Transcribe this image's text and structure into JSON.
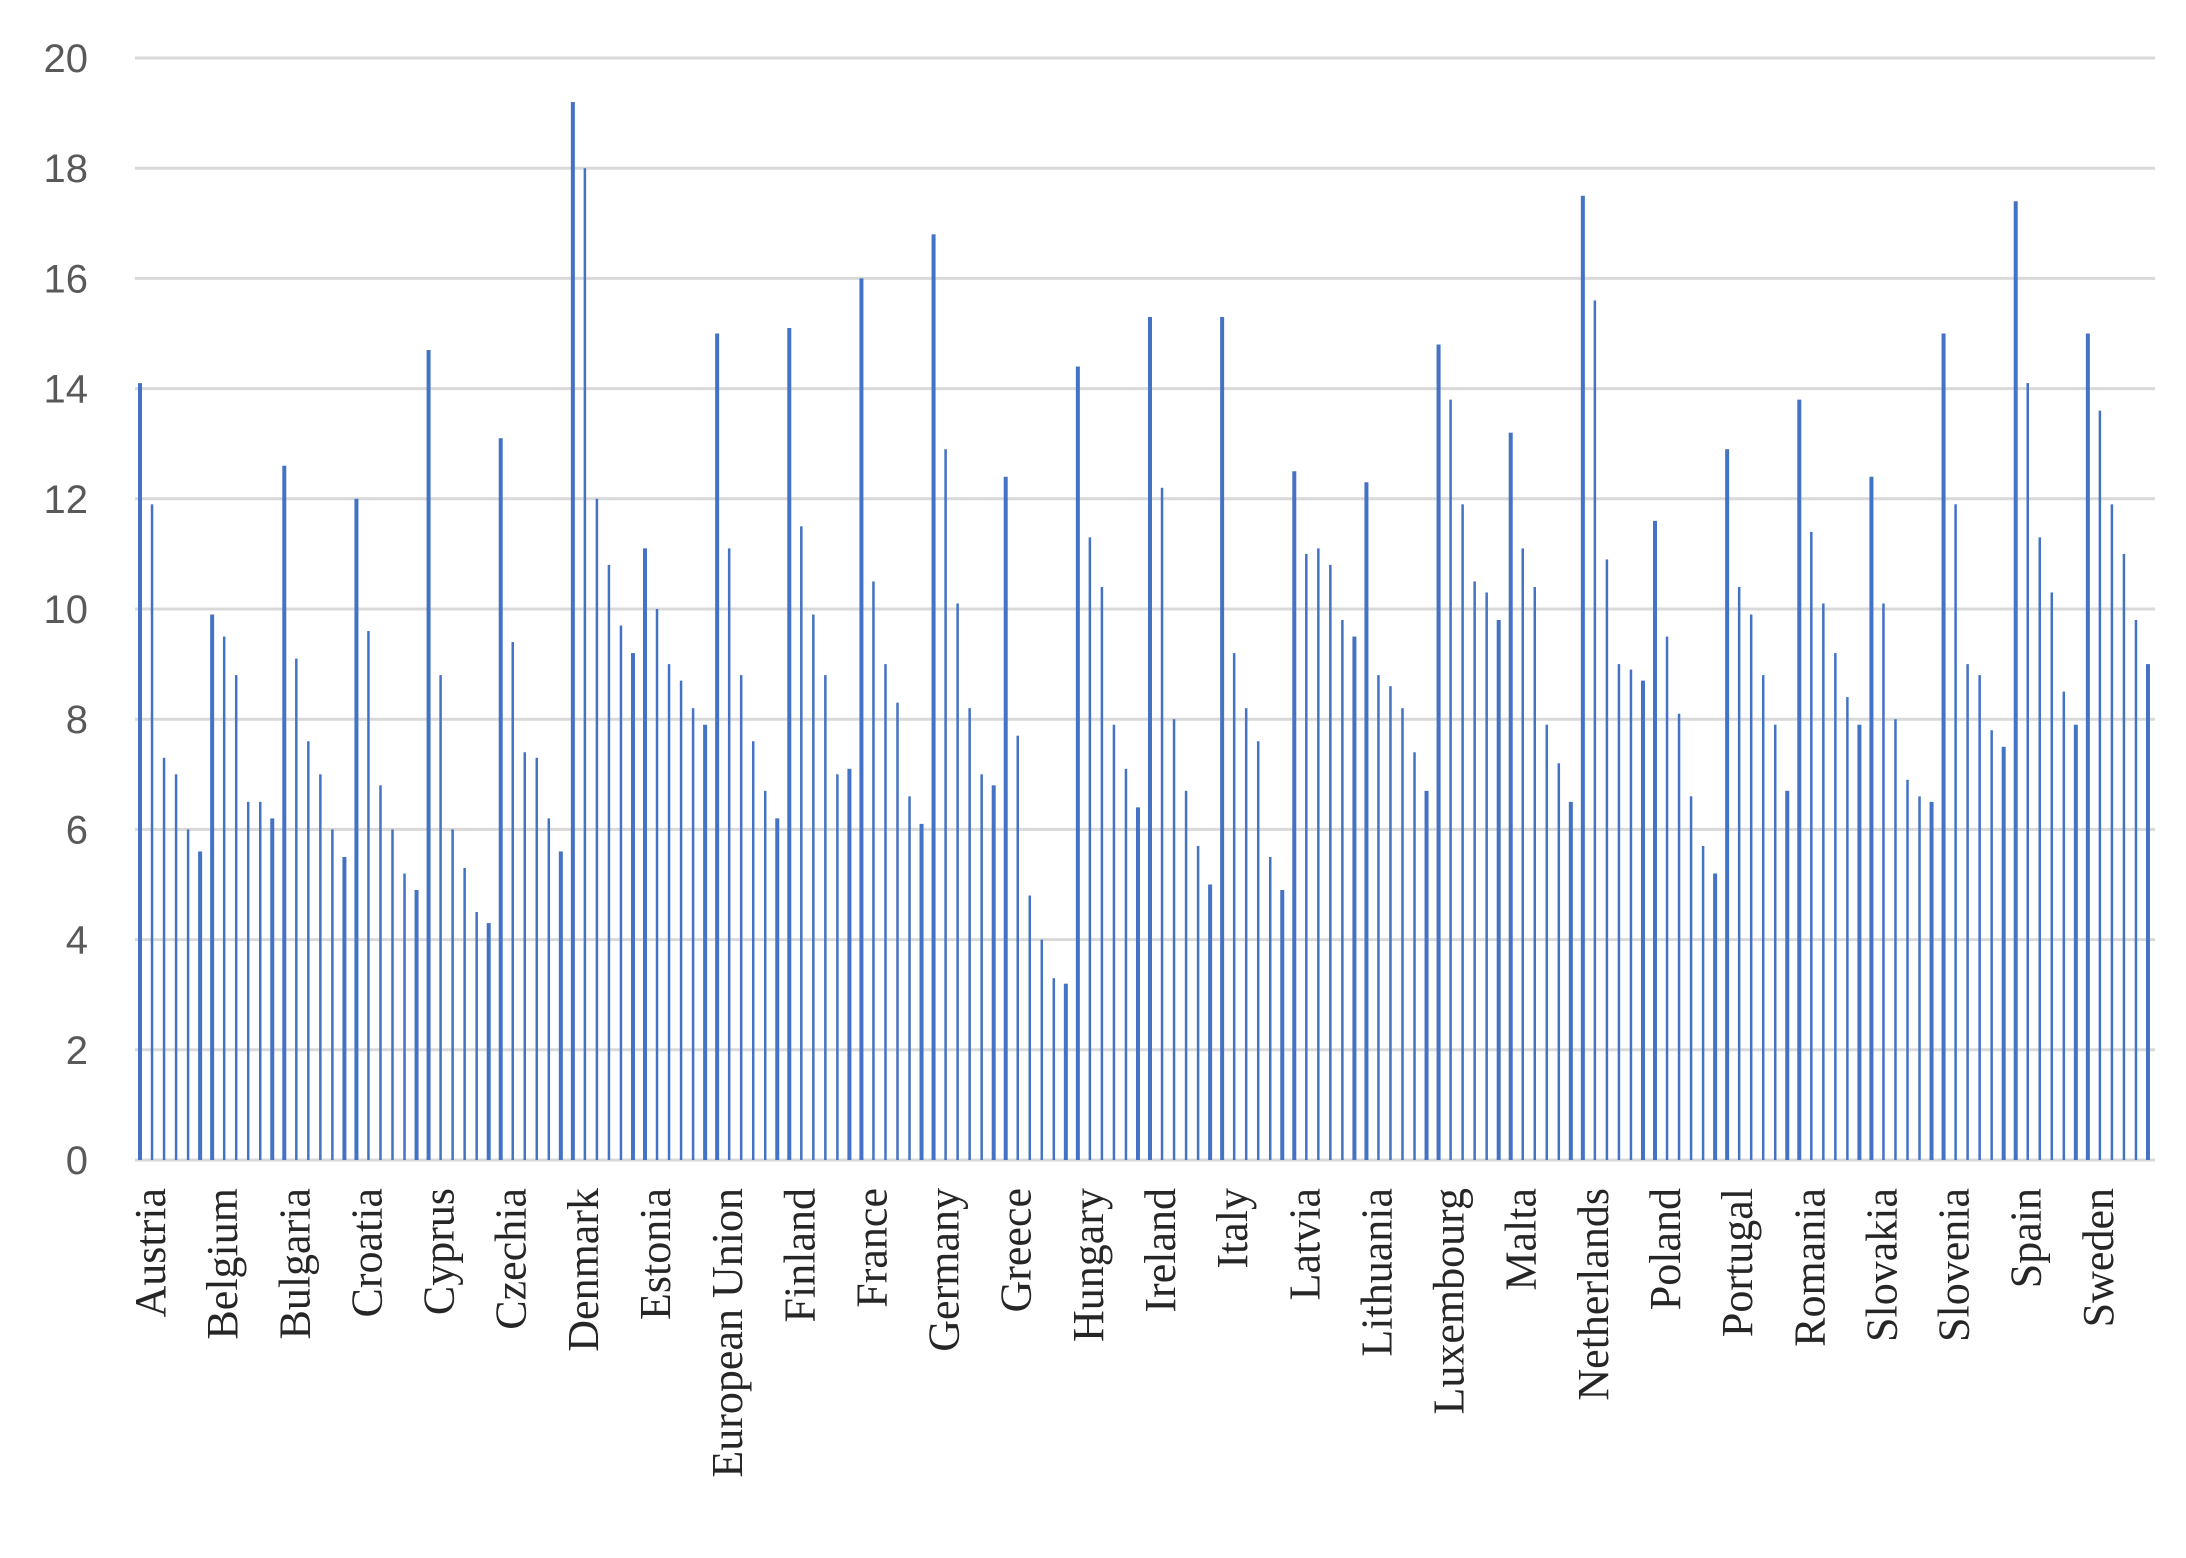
{
  "chart_data": {
    "type": "bar",
    "colors": {
      "bar": "#4472c4",
      "grid": "#d9d9d9",
      "axis_text": "#595959",
      "label_text": "#262626"
    },
    "ylim": [
      0,
      20
    ],
    "y_ticks": [
      "0",
      "2",
      "4",
      "6",
      "8",
      "10",
      "12",
      "14",
      "16",
      "18",
      "20"
    ],
    "grid": true,
    "legend": "none",
    "groups": [
      {
        "label": "Austria",
        "values": [
          14.1,
          11.9,
          7.3,
          7.0,
          6.0,
          5.6
        ]
      },
      {
        "label": "Belgium",
        "values": [
          9.9,
          9.5,
          8.8,
          6.5,
          6.5,
          6.2
        ]
      },
      {
        "label": "Bulgaria",
        "values": [
          12.6,
          9.1,
          7.6,
          7.0,
          6.0,
          5.5
        ]
      },
      {
        "label": "Croatia",
        "values": [
          12.0,
          9.6,
          6.8,
          6.0,
          5.2,
          4.9
        ]
      },
      {
        "label": "Cyprus",
        "values": [
          14.7,
          8.8,
          6.0,
          5.3,
          4.5,
          4.3
        ]
      },
      {
        "label": "Czechia",
        "values": [
          13.1,
          9.4,
          7.4,
          7.3,
          6.2,
          5.6
        ]
      },
      {
        "label": "Denmark",
        "values": [
          19.2,
          18.0,
          12.0,
          10.8,
          9.7,
          9.2
        ]
      },
      {
        "label": "Estonia",
        "values": [
          11.1,
          10.0,
          9.0,
          8.7,
          8.2,
          7.9
        ]
      },
      {
        "label": "European Union",
        "values": [
          15.0,
          11.1,
          8.8,
          7.6,
          6.7,
          6.2
        ]
      },
      {
        "label": "Finland",
        "values": [
          15.1,
          11.5,
          9.9,
          8.8,
          7.0,
          7.1
        ]
      },
      {
        "label": "France",
        "values": [
          16.0,
          10.5,
          9.0,
          8.3,
          6.6,
          6.1
        ]
      },
      {
        "label": "Germany",
        "values": [
          16.8,
          12.9,
          10.1,
          8.2,
          7.0,
          6.8
        ]
      },
      {
        "label": "Greece",
        "values": [
          12.4,
          7.7,
          4.8,
          4.0,
          3.3,
          3.2
        ]
      },
      {
        "label": "Hungary",
        "values": [
          14.4,
          11.3,
          10.4,
          7.9,
          7.1,
          6.4
        ]
      },
      {
        "label": "Ireland",
        "values": [
          15.3,
          12.2,
          8.0,
          6.7,
          5.7,
          5.0
        ]
      },
      {
        "label": "Italy",
        "values": [
          15.3,
          9.2,
          8.2,
          7.6,
          5.5,
          4.9
        ]
      },
      {
        "label": "Latvia",
        "values": [
          12.5,
          11.0,
          11.1,
          10.8,
          9.8,
          9.5
        ]
      },
      {
        "label": "Lithuania",
        "values": [
          12.3,
          8.8,
          8.6,
          8.2,
          7.4,
          6.7
        ]
      },
      {
        "label": "Luxembourg",
        "values": [
          14.8,
          13.8,
          11.9,
          10.5,
          10.3,
          9.8
        ]
      },
      {
        "label": "Malta",
        "values": [
          13.2,
          11.1,
          10.4,
          7.9,
          7.2,
          6.5
        ]
      },
      {
        "label": "Netherlands",
        "values": [
          17.5,
          15.6,
          10.9,
          9.0,
          8.9,
          8.7
        ]
      },
      {
        "label": "Poland",
        "values": [
          11.6,
          9.5,
          8.1,
          6.6,
          5.7,
          5.2
        ]
      },
      {
        "label": "Portugal",
        "values": [
          12.9,
          10.4,
          9.9,
          8.8,
          7.9,
          6.7
        ]
      },
      {
        "label": "Romania",
        "values": [
          13.8,
          11.4,
          10.1,
          9.2,
          8.4,
          7.9
        ]
      },
      {
        "label": "Slovakia",
        "values": [
          12.4,
          10.1,
          8.0,
          6.9,
          6.6,
          6.5
        ]
      },
      {
        "label": "Slovenia",
        "values": [
          15.0,
          11.9,
          9.0,
          8.8,
          7.8,
          7.5
        ]
      },
      {
        "label": "Spain",
        "values": [
          17.4,
          14.1,
          11.3,
          10.3,
          8.5,
          7.9
        ]
      },
      {
        "label": "Sweden",
        "values": [
          15.0,
          13.6,
          11.9,
          11.0,
          9.8,
          9.0
        ]
      }
    ]
  }
}
